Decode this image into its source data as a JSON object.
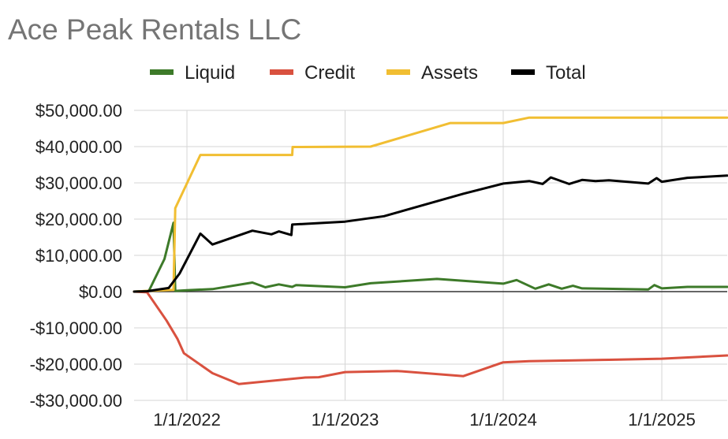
{
  "chart_data": {
    "type": "line",
    "title": "Ace Peak Rentals LLC",
    "xlabel": "",
    "ylabel": "",
    "legend_position": "top",
    "grid": true,
    "xlim": [
      "2021-09-01",
      "2025-06-01"
    ],
    "ylim": [
      -30000,
      50000
    ],
    "x_ticks": [
      {
        "x": "2022-01-01",
        "label": "1/1/2022"
      },
      {
        "x": "2023-01-01",
        "label": "1/1/2023"
      },
      {
        "x": "2024-01-01",
        "label": "1/1/2024"
      },
      {
        "x": "2025-01-01",
        "label": "1/1/2025"
      }
    ],
    "y_ticks": [
      {
        "y": 50000,
        "label": "$50,000.00"
      },
      {
        "y": 40000,
        "label": "$40,000.00"
      },
      {
        "y": 30000,
        "label": "$30,000.00"
      },
      {
        "y": 20000,
        "label": "$20,000.00"
      },
      {
        "y": 10000,
        "label": "$10,000.00"
      },
      {
        "y": 0,
        "label": "$0.00"
      },
      {
        "y": -10000,
        "label": "-$10,000.00"
      },
      {
        "y": -20000,
        "label": "-$20,000.00"
      },
      {
        "y": -30000,
        "label": "-$30,000.00"
      }
    ],
    "series": [
      {
        "name": "Liquid",
        "color": "#3d7a29",
        "points": [
          [
            "2021-09-01",
            0
          ],
          [
            "2021-10-05",
            200
          ],
          [
            "2021-11-10",
            9000
          ],
          [
            "2021-12-01",
            19000
          ],
          [
            "2021-12-05",
            200
          ],
          [
            "2022-01-01",
            400
          ],
          [
            "2022-03-01",
            700
          ],
          [
            "2022-06-01",
            2500
          ],
          [
            "2022-07-01",
            1200
          ],
          [
            "2022-08-01",
            2000
          ],
          [
            "2022-09-01",
            1300
          ],
          [
            "2022-09-10",
            1800
          ],
          [
            "2023-01-01",
            1200
          ],
          [
            "2023-03-01",
            2300
          ],
          [
            "2023-08-01",
            3500
          ],
          [
            "2024-01-01",
            2200
          ],
          [
            "2024-02-01",
            3200
          ],
          [
            "2024-03-15",
            800
          ],
          [
            "2024-04-15",
            2000
          ],
          [
            "2024-05-15",
            800
          ],
          [
            "2024-06-10",
            1600
          ],
          [
            "2024-07-01",
            900
          ],
          [
            "2024-12-01",
            600
          ],
          [
            "2024-12-15",
            1800
          ],
          [
            "2025-01-01",
            900
          ],
          [
            "2025-03-01",
            1300
          ],
          [
            "2025-06-01",
            1300
          ]
        ]
      },
      {
        "name": "Credit",
        "color": "#d9513f",
        "points": [
          [
            "2021-09-01",
            0
          ],
          [
            "2021-10-01",
            -200
          ],
          [
            "2021-11-15",
            -8000
          ],
          [
            "2021-12-10",
            -13000
          ],
          [
            "2021-12-25",
            -17000
          ],
          [
            "2022-03-01",
            -22500
          ],
          [
            "2022-05-01",
            -25500
          ],
          [
            "2022-10-01",
            -23700
          ],
          [
            "2022-11-01",
            -23600
          ],
          [
            "2023-01-01",
            -22200
          ],
          [
            "2023-05-01",
            -21900
          ],
          [
            "2023-10-01",
            -23300
          ],
          [
            "2024-01-01",
            -19500
          ],
          [
            "2024-03-01",
            -19200
          ],
          [
            "2024-06-01",
            -19000
          ],
          [
            "2024-09-01",
            -18800
          ],
          [
            "2025-01-01",
            -18500
          ],
          [
            "2025-06-01",
            -17600
          ]
        ]
      },
      {
        "name": "Assets",
        "color": "#f1be32",
        "points": [
          [
            "2021-09-01",
            0
          ],
          [
            "2021-10-01",
            200
          ],
          [
            "2021-12-01",
            500
          ],
          [
            "2021-12-05",
            23000
          ],
          [
            "2022-02-01",
            37700
          ],
          [
            "2022-09-01",
            37700
          ],
          [
            "2022-09-02",
            39900
          ],
          [
            "2023-03-01",
            40000
          ],
          [
            "2023-09-01",
            46500
          ],
          [
            "2024-01-01",
            46500
          ],
          [
            "2024-03-01",
            48000
          ],
          [
            "2025-06-01",
            48000
          ]
        ]
      },
      {
        "name": "Total",
        "color": "#000000",
        "points": [
          [
            "2021-09-01",
            0
          ],
          [
            "2021-10-01",
            100
          ],
          [
            "2021-11-20",
            1000
          ],
          [
            "2021-12-15",
            5000
          ],
          [
            "2022-02-01",
            16000
          ],
          [
            "2022-03-01",
            13000
          ],
          [
            "2022-06-01",
            16800
          ],
          [
            "2022-07-15",
            15800
          ],
          [
            "2022-08-01",
            16600
          ],
          [
            "2022-08-30",
            15600
          ],
          [
            "2022-09-01",
            18500
          ],
          [
            "2023-01-01",
            19300
          ],
          [
            "2023-04-01",
            20800
          ],
          [
            "2023-10-01",
            27000
          ],
          [
            "2024-01-01",
            29800
          ],
          [
            "2024-03-01",
            30500
          ],
          [
            "2024-04-01",
            29700
          ],
          [
            "2024-04-20",
            31500
          ],
          [
            "2024-06-01",
            29700
          ],
          [
            "2024-07-01",
            30800
          ],
          [
            "2024-08-01",
            30500
          ],
          [
            "2024-09-01",
            30700
          ],
          [
            "2024-12-01",
            29800
          ],
          [
            "2024-12-20",
            31300
          ],
          [
            "2025-01-01",
            30300
          ],
          [
            "2025-03-01",
            31400
          ],
          [
            "2025-06-01",
            32000
          ]
        ]
      }
    ]
  }
}
